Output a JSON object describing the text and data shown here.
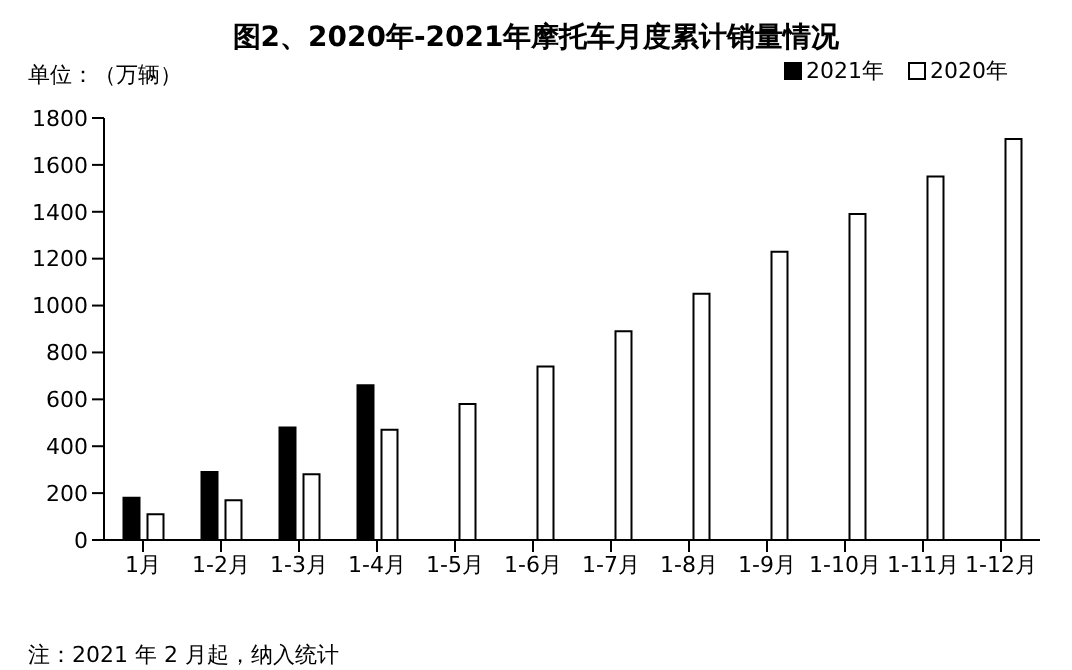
{
  "chart_data": {
    "type": "bar",
    "title": "图2、2020年-2021年摩托车月度累计销量情况",
    "ylabel": "单位：（万辆）",
    "categories": [
      "1月",
      "1-2月",
      "1-3月",
      "1-4月",
      "1-5月",
      "1-6月",
      "1-7月",
      "1-8月",
      "1-9月",
      "1-10月",
      "1-11月",
      "1-12月"
    ],
    "series": [
      {
        "name": "2021年",
        "color": "#000000",
        "values": [
          180,
          290,
          480,
          660,
          null,
          null,
          null,
          null,
          null,
          null,
          null,
          null
        ]
      },
      {
        "name": "2020年",
        "color": "#ffffff",
        "values": [
          110,
          170,
          280,
          470,
          580,
          740,
          890,
          1050,
          1230,
          1390,
          1550,
          1710
        ]
      }
    ],
    "ylim": [
      0,
      1800
    ],
    "yticks": [
      0,
      200,
      400,
      600,
      800,
      1000,
      1200,
      1400,
      1600,
      1800
    ],
    "grid": false,
    "legend": "top right",
    "annotations": [
      "注：2021 年 2 月起，纳入统计"
    ]
  }
}
